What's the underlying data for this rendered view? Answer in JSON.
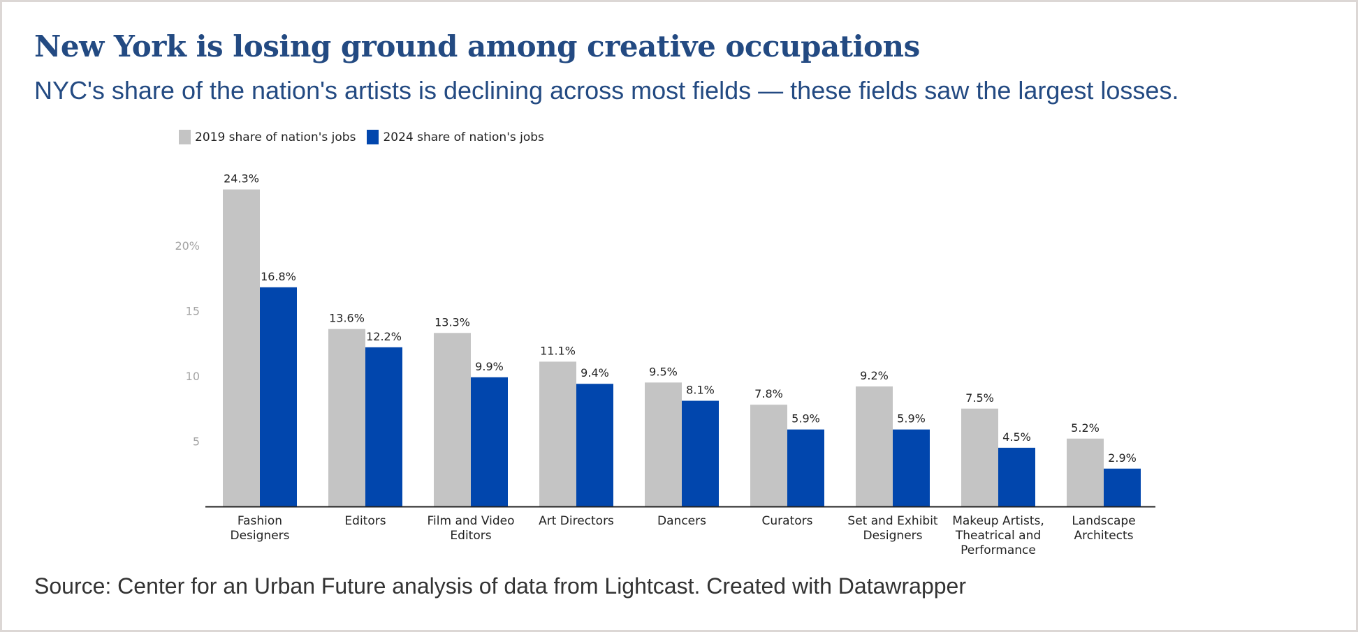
{
  "title": "New York is losing ground among creative occupations",
  "subtitle": "NYC's share of the nation's artists is declining across most fields — these fields saw the largest losses.",
  "source": "Source: Center for an Urban Future analysis of data from Lightcast. Created with Datawrapper",
  "colors": {
    "series_2019": "#c4c4c4",
    "series_2024": "#0146ad",
    "title": "#234a82"
  },
  "chart_data": {
    "type": "bar",
    "categories": [
      [
        "Fashion",
        "Designers"
      ],
      [
        "Editors"
      ],
      [
        "Film and Video",
        "Editors"
      ],
      [
        "Art Directors"
      ],
      [
        "Dancers"
      ],
      [
        "Curators"
      ],
      [
        "Set and Exhibit",
        "Designers"
      ],
      [
        "Makeup Artists,",
        "Theatrical and",
        "Performance"
      ],
      [
        "Landscape",
        "Architects"
      ]
    ],
    "series": [
      {
        "name": "2019 share of nation's jobs",
        "color": "#c4c4c4",
        "values": [
          24.3,
          13.6,
          13.3,
          11.1,
          9.5,
          7.8,
          9.2,
          7.5,
          5.2
        ],
        "labels": [
          "24.3%",
          "13.6%",
          "13.3%",
          "11.1%",
          "9.5%",
          "7.8%",
          "9.2%",
          "7.5%",
          "5.2%"
        ]
      },
      {
        "name": "2024 share of nation's jobs",
        "color": "#0146ad",
        "values": [
          16.8,
          12.2,
          9.9,
          9.4,
          8.1,
          5.9,
          5.9,
          4.5,
          2.9
        ],
        "labels": [
          "16.8%",
          "12.2%",
          "9.9%",
          "9.4%",
          "8.1%",
          "5.9%",
          "5.9%",
          "4.5%",
          "2.9%"
        ]
      }
    ],
    "yticks": [
      5,
      10,
      15,
      20
    ],
    "ytick_labels": [
      "5",
      "10",
      "15",
      "20%"
    ],
    "ylim": [
      0,
      24.3
    ],
    "grid": false,
    "legend_position": "top-left"
  }
}
